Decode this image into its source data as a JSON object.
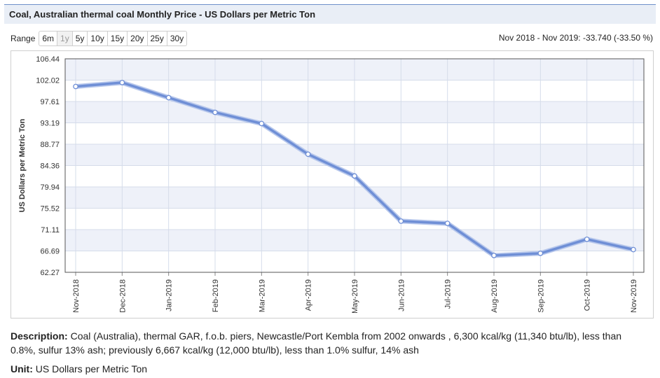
{
  "title": "Coal, Australian thermal coal Monthly Price - US Dollars per Metric Ton",
  "range": {
    "label": "Range",
    "buttons": [
      "6m",
      "1y",
      "5y",
      "10y",
      "15y",
      "20y",
      "25y",
      "30y"
    ],
    "active": "1y"
  },
  "change_text": "Nov 2018 - Nov 2019: -33.740 (-33.50 %)",
  "chart_data": {
    "type": "line",
    "title": "",
    "xlabel": "",
    "ylabel": "US Dollars per Metric Ton",
    "categories": [
      "Nov-2018",
      "Dec-2018",
      "Jan-2019",
      "Feb-2019",
      "Mar-2019",
      "Apr-2019",
      "May-2019",
      "Jun-2019",
      "Jul-2019",
      "Aug-2019",
      "Sep-2019",
      "Oct-2019",
      "Nov-2019"
    ],
    "series": [
      {
        "values": [
          100.71,
          101.52,
          98.4,
          95.35,
          93.05,
          86.7,
          82.2,
          72.85,
          72.4,
          65.75,
          66.2,
          69.1,
          66.97
        ]
      }
    ],
    "yticks": [
      "106.44",
      "102.02",
      "97.61",
      "93.19",
      "88.77",
      "84.36",
      "79.94",
      "75.52",
      "71.11",
      "66.69",
      "62.27"
    ],
    "ylim": [
      62.27,
      106.44
    ],
    "grid": true,
    "line_color": "#6f8fd6"
  },
  "description": {
    "label": "Description:",
    "text": " Coal (Australia), thermal GAR, f.o.b. piers, Newcastle/Port Kembla from 2002 onwards , 6,300 kcal/kg (11,340 btu/lb), less than 0.8%, sulfur 13% ash; previously 6,667 kcal/kg (12,000 btu/lb), less than 1.0% sulfur, 14% ash"
  },
  "unit": {
    "label": "Unit:",
    "text": " US Dollars per Metric Ton"
  }
}
